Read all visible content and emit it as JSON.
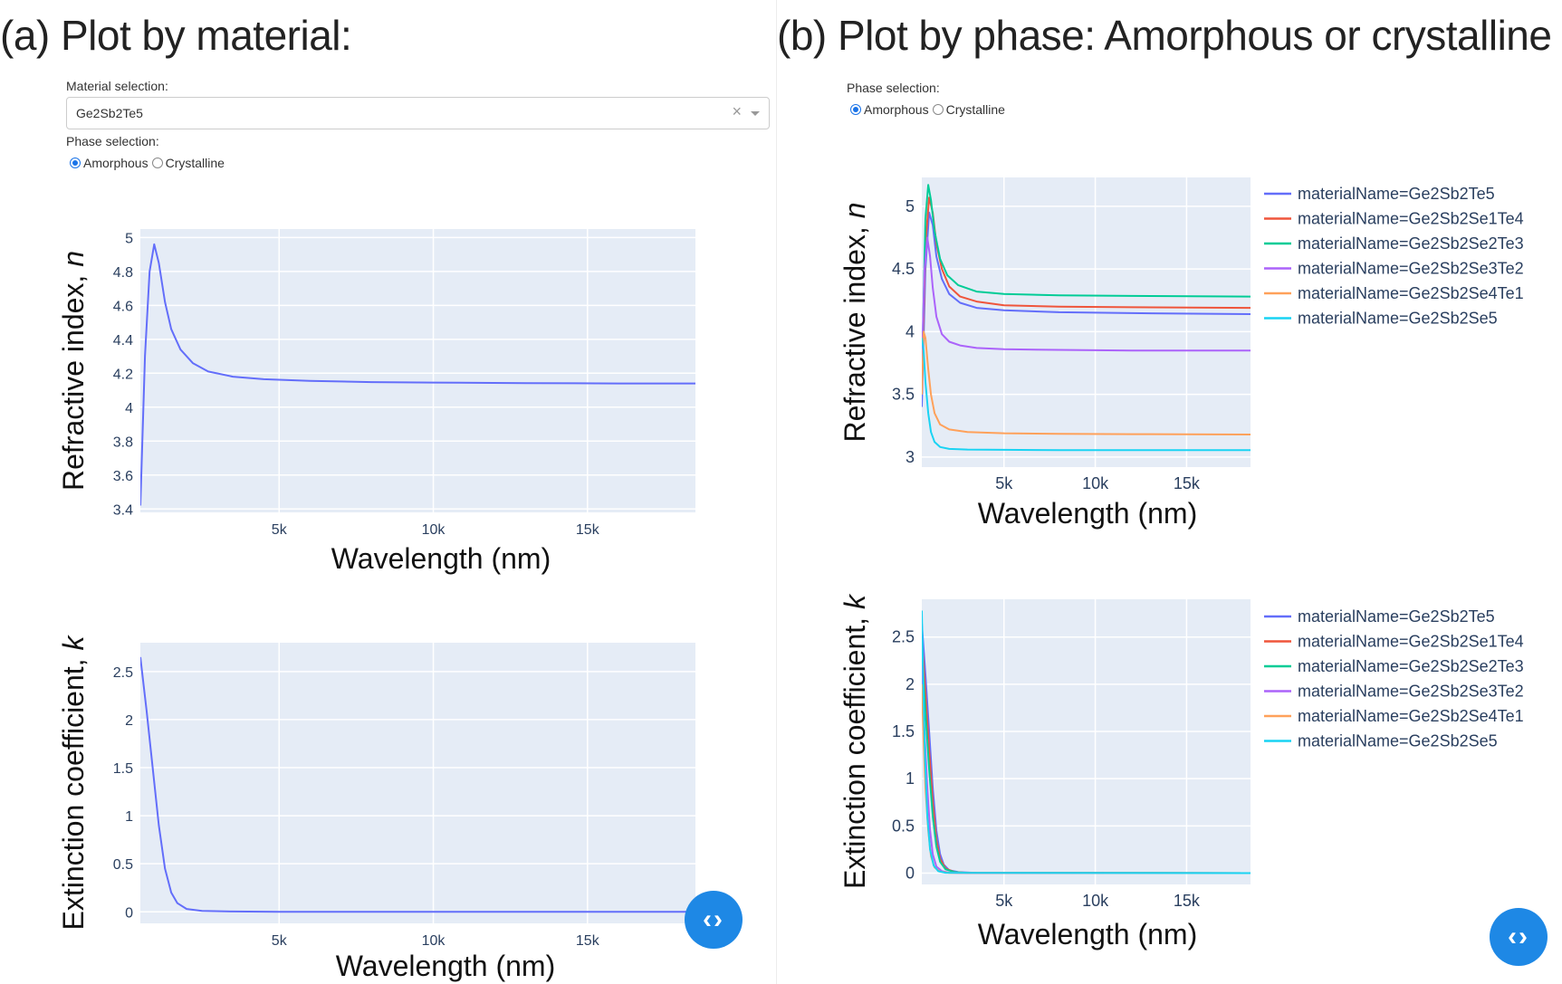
{
  "panel_a": {
    "title": "(a) Plot by material:",
    "material_label": "Material selection:",
    "material_value": "Ge2Sb2Te5",
    "clear_glyph": "×",
    "phase_label": "Phase selection:",
    "phase_options": [
      "Amorphous",
      "Crystalline"
    ],
    "phase_selected": "Amorphous"
  },
  "panel_b": {
    "title": "(b) Plot by phase: Amorphous or crystalline",
    "phase_label": "Phase selection:",
    "phase_options": [
      "Amorphous",
      "Crystalline"
    ],
    "phase_selected": "Amorphous"
  },
  "nav_button_glyph": "‹›",
  "chart_data": [
    {
      "id": "a-n",
      "type": "line",
      "xlabel": "Wavelength (nm)",
      "ylabel": "Refractive index,",
      "ylabel_italic": "n",
      "xlim": [
        500,
        18500
      ],
      "ylim": [
        3.38,
        5.05
      ],
      "xticks": [
        5000,
        10000,
        15000
      ],
      "xtick_labels": [
        "5k",
        "10k",
        "15k"
      ],
      "yticks": [
        3.4,
        3.6,
        3.8,
        4,
        4.2,
        4.4,
        4.6,
        4.8,
        5
      ],
      "ytick_labels": [
        "3.4",
        "3.6",
        "3.8",
        "4",
        "4.2",
        "4.4",
        "4.6",
        "4.8",
        "5"
      ],
      "grid": true,
      "series": [
        {
          "name": "",
          "color": "#636efa",
          "x": [
            500,
            650,
            800,
            950,
            1100,
            1300,
            1500,
            1800,
            2200,
            2700,
            3500,
            4500,
            6000,
            8000,
            10000,
            13000,
            16000,
            18500
          ],
          "y": [
            3.42,
            4.3,
            4.8,
            4.96,
            4.85,
            4.62,
            4.46,
            4.34,
            4.26,
            4.21,
            4.18,
            4.165,
            4.155,
            4.148,
            4.145,
            4.142,
            4.14,
            4.14
          ]
        }
      ]
    },
    {
      "id": "a-k",
      "type": "line",
      "xlabel": "Wavelength (nm)",
      "ylabel": "Extinction coefficient,",
      "ylabel_italic": "k",
      "xlim": [
        500,
        18500
      ],
      "ylim": [
        -0.12,
        2.8
      ],
      "xticks": [
        5000,
        10000,
        15000
      ],
      "xtick_labels": [
        "5k",
        "10k",
        "15k"
      ],
      "yticks": [
        0,
        0.5,
        1,
        1.5,
        2,
        2.5
      ],
      "ytick_labels": [
        "0",
        "0.5",
        "1",
        "1.5",
        "2",
        "2.5"
      ],
      "grid": true,
      "series": [
        {
          "name": "",
          "color": "#636efa",
          "x": [
            500,
            700,
            900,
            1100,
            1300,
            1500,
            1700,
            2000,
            2500,
            3500,
            5000,
            10000,
            18500
          ],
          "y": [
            2.65,
            2.1,
            1.5,
            0.9,
            0.45,
            0.2,
            0.09,
            0.03,
            0.01,
            0.003,
            0.001,
            0.0,
            0.0
          ]
        }
      ]
    },
    {
      "id": "b-n",
      "type": "line",
      "xlabel": "Wavelength (nm)",
      "ylabel": "Refractive index,",
      "ylabel_italic": "n",
      "xlim": [
        500,
        18500
      ],
      "ylim": [
        2.92,
        5.23
      ],
      "xticks": [
        5000,
        10000,
        15000
      ],
      "xtick_labels": [
        "5k",
        "10k",
        "15k"
      ],
      "yticks": [
        3,
        3.5,
        4,
        4.5,
        5
      ],
      "ytick_labels": [
        "3",
        "3.5",
        "4",
        "4.5",
        "5"
      ],
      "grid": true,
      "legend": "right",
      "series": [
        {
          "name": "materialName=Ge2Sb2Te5",
          "color": "#636efa",
          "x": [
            500,
            700,
            900,
            1100,
            1300,
            1600,
            2000,
            2600,
            3500,
            5000,
            8000,
            12000,
            18500
          ],
          "y": [
            3.4,
            4.5,
            4.95,
            4.85,
            4.6,
            4.42,
            4.3,
            4.23,
            4.19,
            4.17,
            4.155,
            4.148,
            4.14
          ]
        },
        {
          "name": "materialName=Ge2Sb2Se1Te4",
          "color": "#ef553b",
          "x": [
            500,
            700,
            900,
            1100,
            1300,
            1600,
            2000,
            2600,
            3500,
            5000,
            8000,
            12000,
            18500
          ],
          "y": [
            3.5,
            4.7,
            5.07,
            4.95,
            4.7,
            4.5,
            4.36,
            4.28,
            4.24,
            4.21,
            4.2,
            4.195,
            4.19
          ]
        },
        {
          "name": "materialName=Ge2Sb2Se2Te3",
          "color": "#00cc96",
          "x": [
            500,
            700,
            850,
            1000,
            1200,
            1500,
            1900,
            2500,
            3500,
            5000,
            8000,
            12000,
            18500
          ],
          "y": [
            3.6,
            4.9,
            5.17,
            5.05,
            4.8,
            4.58,
            4.45,
            4.37,
            4.32,
            4.3,
            4.29,
            4.285,
            4.28
          ]
        },
        {
          "name": "materialName=Ge2Sb2Se3Te2",
          "color": "#ab63fa",
          "x": [
            500,
            650,
            800,
            950,
            1100,
            1300,
            1600,
            2000,
            2600,
            3500,
            5000,
            8000,
            12000,
            18500
          ],
          "y": [
            3.7,
            4.5,
            4.75,
            4.6,
            4.35,
            4.12,
            3.98,
            3.92,
            3.89,
            3.87,
            3.86,
            3.855,
            3.85,
            3.85
          ]
        },
        {
          "name": "materialName=Ge2Sb2Se4Te1",
          "color": "#ffa15a",
          "x": [
            500,
            600,
            700,
            850,
            1000,
            1200,
            1500,
            2000,
            3000,
            5000,
            8000,
            12000,
            18500
          ],
          "y": [
            3.5,
            4.0,
            3.95,
            3.7,
            3.5,
            3.35,
            3.26,
            3.22,
            3.2,
            3.19,
            3.185,
            3.183,
            3.18
          ]
        },
        {
          "name": "materialName=Ge2Sb2Se5",
          "color": "#19d3f3",
          "x": [
            500,
            600,
            700,
            850,
            1000,
            1200,
            1500,
            2000,
            3000,
            5000,
            8000,
            12000,
            18500
          ],
          "y": [
            3.95,
            3.85,
            3.6,
            3.35,
            3.2,
            3.12,
            3.08,
            3.065,
            3.06,
            3.058,
            3.056,
            3.055,
            3.055
          ]
        }
      ]
    },
    {
      "id": "b-k",
      "type": "line",
      "xlabel": "Wavelength (nm)",
      "ylabel": "Extinction coefficient,",
      "ylabel_italic": "k",
      "xlim": [
        500,
        18500
      ],
      "ylim": [
        -0.12,
        2.9
      ],
      "xticks": [
        5000,
        10000,
        15000
      ],
      "xtick_labels": [
        "5k",
        "10k",
        "15k"
      ],
      "yticks": [
        0,
        0.5,
        1,
        1.5,
        2,
        2.5
      ],
      "ytick_labels": [
        "0",
        "0.5",
        "1",
        "1.5",
        "2",
        "2.5"
      ],
      "grid": true,
      "legend": "right",
      "series": [
        {
          "name": "materialName=Ge2Sb2Te5",
          "color": "#636efa",
          "x": [
            500,
            700,
            900,
            1100,
            1300,
            1500,
            1700,
            2000,
            2500,
            3500,
            18500
          ],
          "y": [
            2.65,
            2.1,
            1.5,
            0.9,
            0.45,
            0.2,
            0.09,
            0.03,
            0.01,
            0.002,
            0.0
          ]
        },
        {
          "name": "materialName=Ge2Sb2Se1Te4",
          "color": "#ef553b",
          "x": [
            500,
            700,
            900,
            1100,
            1300,
            1500,
            1800,
            2300,
            3000,
            18500
          ],
          "y": [
            2.5,
            1.9,
            1.3,
            0.75,
            0.35,
            0.15,
            0.05,
            0.01,
            0.003,
            0.0
          ]
        },
        {
          "name": "materialName=Ge2Sb2Se2Te3",
          "color": "#00cc96",
          "x": [
            500,
            700,
            900,
            1100,
            1300,
            1500,
            1800,
            2300,
            3000,
            18500
          ],
          "y": [
            2.35,
            1.7,
            1.1,
            0.6,
            0.28,
            0.12,
            0.04,
            0.01,
            0.002,
            0.0
          ]
        },
        {
          "name": "materialName=Ge2Sb2Se3Te2",
          "color": "#ab63fa",
          "x": [
            500,
            650,
            800,
            950,
            1100,
            1300,
            1600,
            2000,
            2600,
            18500
          ],
          "y": [
            2.2,
            1.5,
            0.9,
            0.45,
            0.2,
            0.07,
            0.02,
            0.005,
            0.001,
            0.0
          ]
        },
        {
          "name": "materialName=Ge2Sb2Se4Te1",
          "color": "#ffa15a",
          "x": [
            500,
            600,
            700,
            850,
            1000,
            1200,
            1500,
            2000,
            18500
          ],
          "y": [
            2.0,
            1.4,
            0.9,
            0.45,
            0.18,
            0.06,
            0.015,
            0.003,
            0.0
          ]
        },
        {
          "name": "materialName=Ge2Sb2Se5",
          "color": "#19d3f3",
          "x": [
            500,
            580,
            680,
            800,
            950,
            1150,
            1400,
            1800,
            18500
          ],
          "y": [
            2.78,
            2.0,
            1.2,
            0.6,
            0.25,
            0.08,
            0.02,
            0.004,
            0.0
          ]
        }
      ]
    }
  ]
}
